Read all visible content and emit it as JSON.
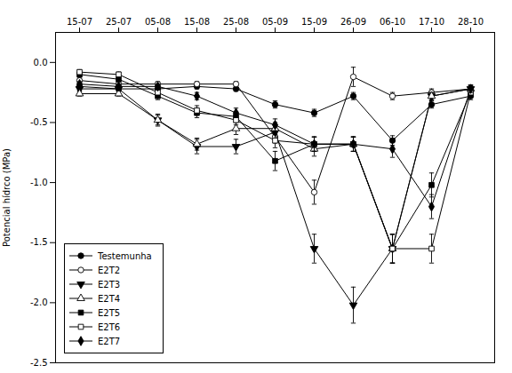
{
  "chart_data": {
    "type": "line",
    "categories": [
      "15-07",
      "25-07",
      "05-08",
      "15-08",
      "25-08",
      "05-09",
      "15-09",
      "26-09",
      "06-10",
      "17-10",
      "28-10"
    ],
    "ylabel": "Potencial hídrco (MPa)",
    "ylim": [
      -2.5,
      0.25
    ],
    "yticks": [
      {
        "value": 0.0,
        "label": "0.0"
      },
      -0.5,
      {
        "value": -1.0,
        "label": "-1.0"
      },
      -1.5,
      {
        "value": -2.0,
        "label": "-2.0"
      },
      -2.5
    ],
    "grid": false,
    "legend": "lower left",
    "series": [
      {
        "name": "Testemunha",
        "color": "black",
        "marker": "circle",
        "values": [
          -0.2,
          -0.22,
          -0.22,
          -0.2,
          -0.22,
          -0.35,
          -0.42,
          -0.28,
          -0.65,
          -0.35,
          -0.28
        ],
        "yerr": [
          0.03,
          0.02,
          0.02,
          0.02,
          0.02,
          0.03,
          0.03,
          0.03,
          0.04,
          0.03,
          0.03
        ]
      },
      {
        "name": "E2T2",
        "color": "black",
        "marker": "circle-open",
        "values": [
          -0.15,
          -0.18,
          -0.18,
          -0.18,
          -0.18,
          -0.62,
          -1.08,
          -0.12,
          -0.28,
          -0.25,
          -0.22
        ],
        "yerr": [
          0.02,
          0.02,
          0.02,
          0.02,
          0.02,
          0.05,
          0.1,
          0.08,
          0.03,
          0.03,
          0.03
        ]
      },
      {
        "name": "E2T3",
        "color": "black",
        "marker": "triangle-down",
        "values": [
          -0.22,
          -0.22,
          -0.48,
          -0.7,
          -0.7,
          -0.58,
          -1.55,
          -2.02,
          -1.55,
          -0.28,
          -0.22
        ],
        "yerr": [
          0.02,
          0.02,
          0.05,
          0.06,
          0.06,
          0.06,
          0.12,
          0.15,
          0.12,
          0.03,
          0.03
        ]
      },
      {
        "name": "E2T4",
        "color": "black",
        "marker": "triangle-up-open",
        "values": [
          -0.26,
          -0.26,
          -0.48,
          -0.68,
          -0.55,
          -0.55,
          -0.72,
          -0.68,
          -1.55,
          -0.28,
          -0.22
        ],
        "yerr": [
          0.02,
          0.02,
          0.04,
          0.05,
          0.05,
          0.05,
          0.06,
          0.06,
          0.12,
          0.03,
          0.03
        ]
      },
      {
        "name": "E2T5",
        "color": "black",
        "marker": "square",
        "values": [
          -0.1,
          -0.14,
          -0.28,
          -0.42,
          -0.45,
          -0.82,
          -0.68,
          -0.68,
          -1.55,
          -1.02,
          -0.25
        ],
        "yerr": [
          0.02,
          0.02,
          0.03,
          0.04,
          0.04,
          0.08,
          0.06,
          0.06,
          0.12,
          0.1,
          0.03
        ]
      },
      {
        "name": "E2T6",
        "color": "black",
        "marker": "square-open",
        "values": [
          -0.08,
          -0.1,
          -0.25,
          -0.4,
          -0.48,
          -0.65,
          -0.68,
          -0.68,
          -1.55,
          -1.55,
          -0.25
        ],
        "yerr": [
          0.02,
          0.02,
          0.03,
          0.04,
          0.04,
          0.06,
          0.06,
          0.06,
          0.12,
          0.12,
          0.03
        ]
      },
      {
        "name": "E2T7",
        "color": "black",
        "marker": "diamond",
        "values": [
          -0.18,
          -0.2,
          -0.2,
          -0.28,
          -0.42,
          -0.52,
          -0.68,
          -0.68,
          -0.72,
          -1.2,
          -0.22
        ],
        "yerr": [
          0.02,
          0.02,
          0.02,
          0.03,
          0.04,
          0.05,
          0.06,
          0.06,
          0.07,
          0.1,
          0.03
        ]
      }
    ]
  }
}
